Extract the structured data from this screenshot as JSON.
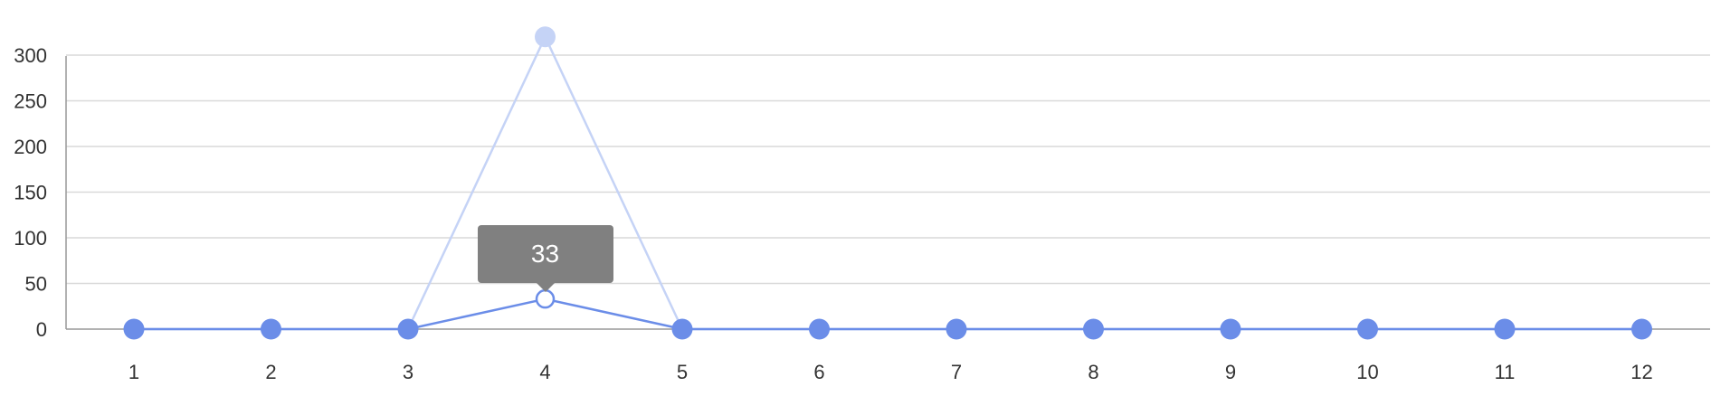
{
  "chart_data": {
    "type": "line",
    "categories": [
      "1",
      "2",
      "3",
      "4",
      "5",
      "6",
      "7",
      "8",
      "9",
      "10",
      "11",
      "12"
    ],
    "series": [
      {
        "values": [
          0,
          0,
          0,
          320,
          0,
          0,
          0,
          0,
          0,
          0,
          0,
          0
        ],
        "color": "#c5d3f6",
        "style": "faded"
      },
      {
        "values": [
          0,
          0,
          0,
          33,
          0,
          0,
          0,
          0,
          0,
          0,
          0,
          0
        ],
        "color": "#6b8de8",
        "style": "highlighted"
      }
    ],
    "y_ticks": [
      0,
      50,
      100,
      150,
      200,
      250,
      300
    ],
    "ylim": [
      0,
      320
    ],
    "grid": true,
    "xlabel": "",
    "ylabel": "",
    "tooltip": {
      "category": "4",
      "value": "33"
    },
    "colors": {
      "grid": "#d9d9d9",
      "axis": "#999999",
      "tooltip_bg": "#808080"
    }
  }
}
